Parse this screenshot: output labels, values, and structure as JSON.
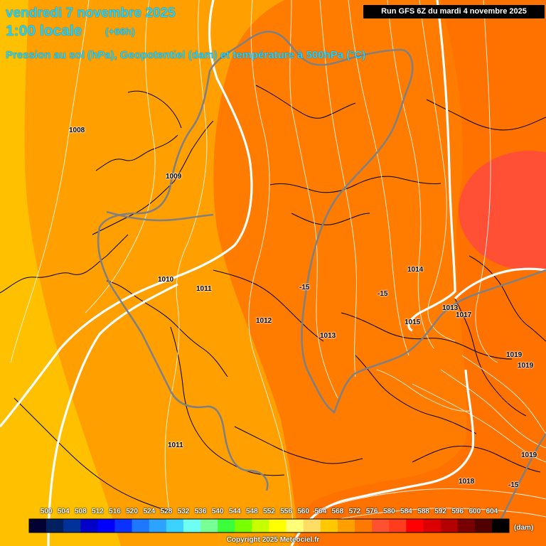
{
  "header": {
    "date_line": "vendredi 7 novembre 2025",
    "time_line": "1:00 locale",
    "offset": "(+66h)",
    "parameter_line": "Pression au sol (hPa), Geopotentiel (dam) et température à 500hPa (°C)"
  },
  "run_info": "Run GFS 6Z du mardi 4 novembre 2025",
  "pressure_labels": [
    {
      "text": "1008"
    },
    {
      "text": "1009"
    },
    {
      "text": "1010"
    },
    {
      "text": "1011"
    },
    {
      "text": "1012"
    },
    {
      "text": "1013"
    },
    {
      "text": "1014"
    },
    {
      "text": "1013"
    },
    {
      "text": "1017"
    },
    {
      "text": "1015"
    },
    {
      "text": "1019"
    },
    {
      "text": "1019"
    },
    {
      "text": "1011"
    },
    {
      "text": "1019"
    },
    {
      "text": "1018"
    }
  ],
  "temperature_labels": [
    {
      "text": "-15"
    },
    {
      "text": "-15"
    },
    {
      "text": "-15"
    }
  ],
  "geopotential_scale": {
    "unit": "(dam)",
    "levels": [
      "500",
      "504",
      "508",
      "512",
      "516",
      "520",
      "524",
      "528",
      "532",
      "536",
      "540",
      "544",
      "548",
      "552",
      "556",
      "560",
      "564",
      "568",
      "572",
      "576",
      "580",
      "584",
      "588",
      "592",
      "596",
      "600",
      "604"
    ],
    "colors": [
      "#000033",
      "#00205f",
      "#00329a",
      "#0000c8",
      "#0000ff",
      "#0a32ff",
      "#1e78ff",
      "#2ca4ff",
      "#3cd2ff",
      "#6ffff2",
      "#78ff96",
      "#3cff3c",
      "#78ff00",
      "#c8ff00",
      "#ffff00",
      "#ffff78",
      "#ffdc64",
      "#ffc800",
      "#ffa000",
      "#ff7800",
      "#ff5030",
      "#ff3c1e",
      "#ff0000",
      "#dc0000",
      "#b40000",
      "#780000",
      "#500000",
      "#000000"
    ]
  },
  "map_colors": {
    "band_552_556": "#ffc000",
    "band_556_560": "#ffa000",
    "band_560_564": "#ff7c00",
    "band_564_568": "#ff6a00",
    "band_568_572": "#ff5036"
  },
  "copyright": "Copyright 2025 Meteociel.fr"
}
